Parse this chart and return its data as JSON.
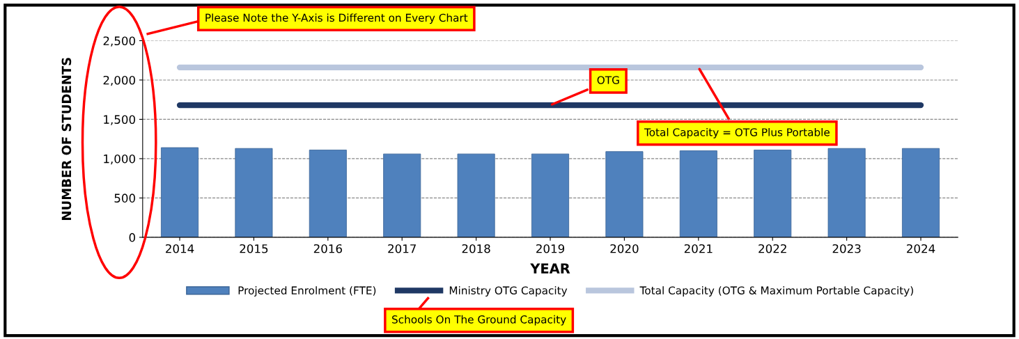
{
  "chart_data": {
    "type": "bar",
    "xlabel": "YEAR",
    "ylabel": "NUMBER OF STUDENTS",
    "categories": [
      "2014",
      "2015",
      "2016",
      "2017",
      "2018",
      "2019",
      "2020",
      "2021",
      "2022",
      "2023",
      "2024"
    ],
    "series": [
      {
        "name": "Projected Enrolment (FTE)",
        "color": "#4f81bd",
        "values": [
          1140,
          1130,
          1110,
          1060,
          1060,
          1060,
          1090,
          1100,
          1110,
          1130,
          1130
        ]
      },
      {
        "name": "Ministry OTG Capacity",
        "type": "line",
        "color": "#1f3864",
        "values": [
          1680,
          1680,
          1680,
          1680,
          1680,
          1680,
          1680,
          1680,
          1680,
          1680,
          1680
        ]
      },
      {
        "name": "Total Capacity (OTG & Maximum Portable Capacity)",
        "type": "line",
        "color": "#b9c6dd",
        "values": [
          2160,
          2160,
          2160,
          2160,
          2160,
          2160,
          2160,
          2160,
          2160,
          2160,
          2160
        ]
      }
    ],
    "ylim": [
      0,
      2500
    ],
    "yticks": [
      0,
      500,
      {
        "value": 1000,
        "label": "1,000"
      },
      {
        "value": 1500,
        "label": "1,500"
      },
      {
        "value": 2000,
        "label": "2,000"
      },
      {
        "value": 2500,
        "label": "2,500"
      }
    ],
    "grid": "y",
    "legend": "bottom",
    "marker": "none",
    "line_style": "solid",
    "annotations": [
      "Please Note the Y-Axis is Different on Every Chart",
      {
        "text": "OTG",
        "x": "2019",
        "y": 1680
      },
      {
        "text": "Total Capacity = OTG Plus Portable",
        "x": "2021",
        "y": 2160
      },
      "Schools On The Ground Capacity"
    ]
  }
}
